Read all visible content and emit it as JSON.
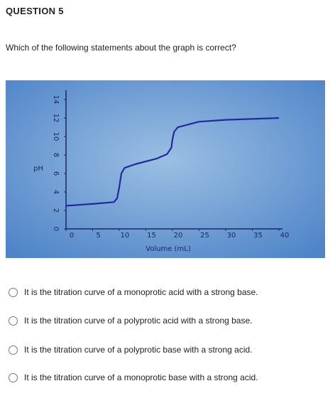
{
  "header": {
    "title": "QUESTION 5"
  },
  "question": {
    "text": "Which of the following statements about the graph is correct?"
  },
  "graph": {
    "type": "line",
    "y_label": "pH",
    "x_label": "Volume (mL)",
    "x": [
      0,
      5,
      9,
      9.6,
      10,
      10.4,
      11,
      13,
      17,
      19,
      19.8,
      20,
      20.3,
      21,
      25,
      30,
      40
    ],
    "values": [
      2.5,
      2.7,
      2.9,
      3.3,
      4.5,
      6,
      6.6,
      7.0,
      7.6,
      8.1,
      8.8,
      9.7,
      10.5,
      11.0,
      11.6,
      11.8,
      12
    ],
    "color": "#1f2b9c",
    "xlim": [
      0,
      40
    ],
    "ylim": [
      0,
      15
    ],
    "xticks": [
      0,
      5,
      10,
      15,
      20,
      25,
      30,
      35,
      40
    ],
    "yticks": [
      0,
      2,
      4,
      6,
      8,
      10,
      12,
      14
    ]
  },
  "options": [
    "It is the titration curve of a monoprotic acid with a strong base.",
    "It is the titration curve of a polyprotic acid with a strong base.",
    "It is the titration curve of a polyprotic base with a strong acid.",
    "It is the titration curve of a monoprotic base with a strong acid."
  ]
}
